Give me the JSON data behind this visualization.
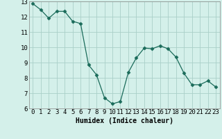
{
  "x": [
    0,
    1,
    2,
    3,
    4,
    5,
    6,
    7,
    8,
    9,
    10,
    11,
    12,
    13,
    14,
    15,
    16,
    17,
    18,
    19,
    20,
    21,
    22,
    23
  ],
  "y": [
    12.85,
    12.45,
    11.9,
    12.35,
    12.35,
    11.7,
    11.55,
    8.85,
    8.2,
    6.7,
    6.3,
    6.45,
    8.35,
    9.3,
    9.95,
    9.9,
    10.1,
    9.9,
    9.35,
    8.3,
    7.55,
    7.55,
    7.8,
    7.4
  ],
  "line_color": "#1a6b5a",
  "marker": "D",
  "marker_size": 2.5,
  "bg_color": "#d4f0ea",
  "grid_color": "#aacfc8",
  "grid_color_minor": "#c8e8e2",
  "xlabel": "Humidex (Indice chaleur)",
  "ylim": [
    6,
    13
  ],
  "xlim": [
    -0.5,
    23.5
  ],
  "yticks": [
    6,
    7,
    8,
    9,
    10,
    11,
    12,
    13
  ],
  "xticks": [
    0,
    1,
    2,
    3,
    4,
    5,
    6,
    7,
    8,
    9,
    10,
    11,
    12,
    13,
    14,
    15,
    16,
    17,
    18,
    19,
    20,
    21,
    22,
    23
  ],
  "xlabel_fontsize": 7,
  "tick_fontsize": 6.5
}
